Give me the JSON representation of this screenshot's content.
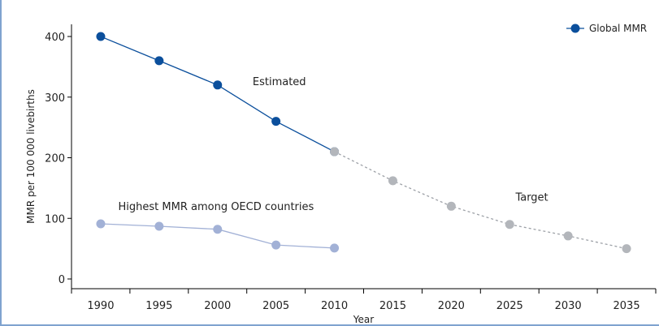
{
  "chart_data": {
    "type": "line",
    "xlabel": "Year",
    "ylabel": "MMR per 100 000 livebirths",
    "x": [
      1990,
      1995,
      2000,
      2005,
      2010,
      2015,
      2020,
      2025,
      2030,
      2035
    ],
    "xlim": [
      1987.5,
      2037.5
    ],
    "ylim": [
      0,
      400
    ],
    "yticks": [
      0,
      100,
      200,
      300,
      400
    ],
    "grid": false,
    "legend_position": "top-right",
    "series": [
      {
        "name": "Global MMR",
        "style": "solid",
        "color": "#0b4f9c",
        "x": [
          1990,
          1995,
          2000,
          2005,
          2010
        ],
        "values": [
          400,
          360,
          320,
          260,
          210
        ]
      },
      {
        "name": "",
        "style": "dashed",
        "color": "#b3b6bb",
        "x": [
          2010,
          2015,
          2020,
          2025,
          2030,
          2035
        ],
        "values": [
          210,
          162,
          120,
          90,
          71,
          50
        ]
      },
      {
        "name": "",
        "style": "solid",
        "color": "#a2b1d6",
        "x": [
          1990,
          1995,
          2000,
          2005,
          2010
        ],
        "values": [
          91,
          87,
          82,
          56,
          51
        ]
      }
    ],
    "annotations": [
      {
        "text": "Estimated",
        "x": 2003,
        "y": 320
      },
      {
        "text": "Target",
        "x": 2025.5,
        "y": 129
      },
      {
        "text": "Highest MMR among OECD countries",
        "x": 1991.5,
        "y": 114
      }
    ]
  }
}
